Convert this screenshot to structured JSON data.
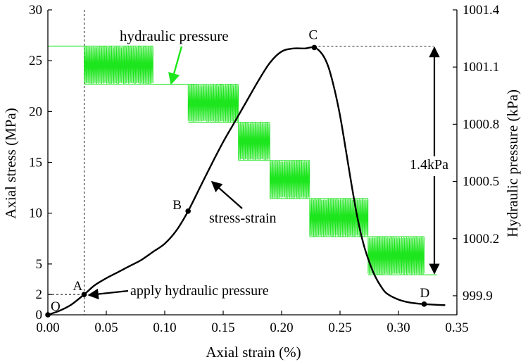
{
  "chart_data": {
    "type": "line",
    "xlabel": "Axial strain (%)",
    "ylabel": "Axial stress (MPa)",
    "y2label": "Hydraulic pressure (kPa)",
    "xlim": [
      0,
      0.35
    ],
    "ylim": [
      0,
      30
    ],
    "y2lim": [
      999.8,
      1001.4
    ],
    "x_ticks": [
      0.0,
      0.05,
      0.1,
      0.15,
      0.2,
      0.25,
      0.3,
      0.35
    ],
    "x_tick_labels": [
      "0.00",
      "0.05",
      "0.10",
      "0.15",
      "0.20",
      "0.25",
      "0.30",
      "0.35"
    ],
    "y_ticks": [
      0,
      2,
      5,
      10,
      15,
      20,
      25,
      30
    ],
    "y_tick_labels": [
      "0",
      "2",
      "5",
      "10",
      "15",
      "20",
      "25",
      "30"
    ],
    "y2_ticks": [
      999.9,
      1000.2,
      1000.5,
      1000.8,
      1001.1,
      1001.4
    ],
    "y2_tick_labels": [
      "999.9",
      "1000.2",
      "1000.5",
      "1000.8",
      "1001.1",
      "1001.4"
    ],
    "series": [
      {
        "name": "stress-strain",
        "axis": "left",
        "color": "#000000",
        "x": [
          0.0,
          0.01,
          0.02,
          0.031,
          0.04,
          0.05,
          0.06,
          0.07,
          0.08,
          0.09,
          0.1,
          0.11,
          0.12,
          0.13,
          0.14,
          0.15,
          0.16,
          0.17,
          0.18,
          0.19,
          0.2,
          0.21,
          0.22,
          0.228,
          0.235,
          0.24,
          0.245,
          0.25,
          0.255,
          0.26,
          0.265,
          0.27,
          0.275,
          0.28,
          0.285,
          0.29,
          0.3,
          0.31,
          0.322,
          0.33,
          0.34
        ],
        "y": [
          0.0,
          0.4,
          1.0,
          2.0,
          2.9,
          3.6,
          4.2,
          4.8,
          5.4,
          6.2,
          7.0,
          8.3,
          10.2,
          12.5,
          14.8,
          17.0,
          19.0,
          21.0,
          23.0,
          24.8,
          25.9,
          26.2,
          26.2,
          26.3,
          25.6,
          24.4,
          22.3,
          19.6,
          16.2,
          12.7,
          9.5,
          7.0,
          5.2,
          3.8,
          2.8,
          2.1,
          1.5,
          1.2,
          1.05,
          1.0,
          0.95
        ]
      },
      {
        "name": "hydraulic pressure",
        "axis": "right",
        "color": "#1ee61e",
        "steps": [
          {
            "x_start": 0.0,
            "x_end": 0.031,
            "min": 1001.21,
            "max": 1001.21
          },
          {
            "x_start": 0.031,
            "x_end": 0.09,
            "min": 1001.01,
            "max": 1001.21
          },
          {
            "x_start": 0.09,
            "x_end": 0.12,
            "min": 1001.01,
            "max": 1001.01
          },
          {
            "x_start": 0.12,
            "x_end": 0.163,
            "min": 1000.81,
            "max": 1001.01
          },
          {
            "x_start": 0.163,
            "x_end": 0.19,
            "min": 1000.61,
            "max": 1000.81
          },
          {
            "x_start": 0.19,
            "x_end": 0.224,
            "min": 1000.41,
            "max": 1000.61
          },
          {
            "x_start": 0.224,
            "x_end": 0.274,
            "min": 1000.21,
            "max": 1000.41
          },
          {
            "x_start": 0.274,
            "x_end": 0.322,
            "min": 1000.01,
            "max": 1000.21
          }
        ]
      }
    ],
    "points": [
      {
        "label": "O",
        "x": 0.0,
        "y": 0.0
      },
      {
        "label": "A",
        "x": 0.031,
        "y": 2.0
      },
      {
        "label": "B",
        "x": 0.12,
        "y": 10.2
      },
      {
        "label": "C",
        "x": 0.228,
        "y": 26.3
      },
      {
        "label": "D",
        "x": 0.322,
        "y": 1.05
      }
    ],
    "annotations": [
      {
        "text": "hydraulic pressure",
        "color": "#1ee61e"
      },
      {
        "text": "stress-strain"
      },
      {
        "text": "apply hydraulic pressure"
      },
      {
        "text": "1.4kPa"
      }
    ]
  }
}
